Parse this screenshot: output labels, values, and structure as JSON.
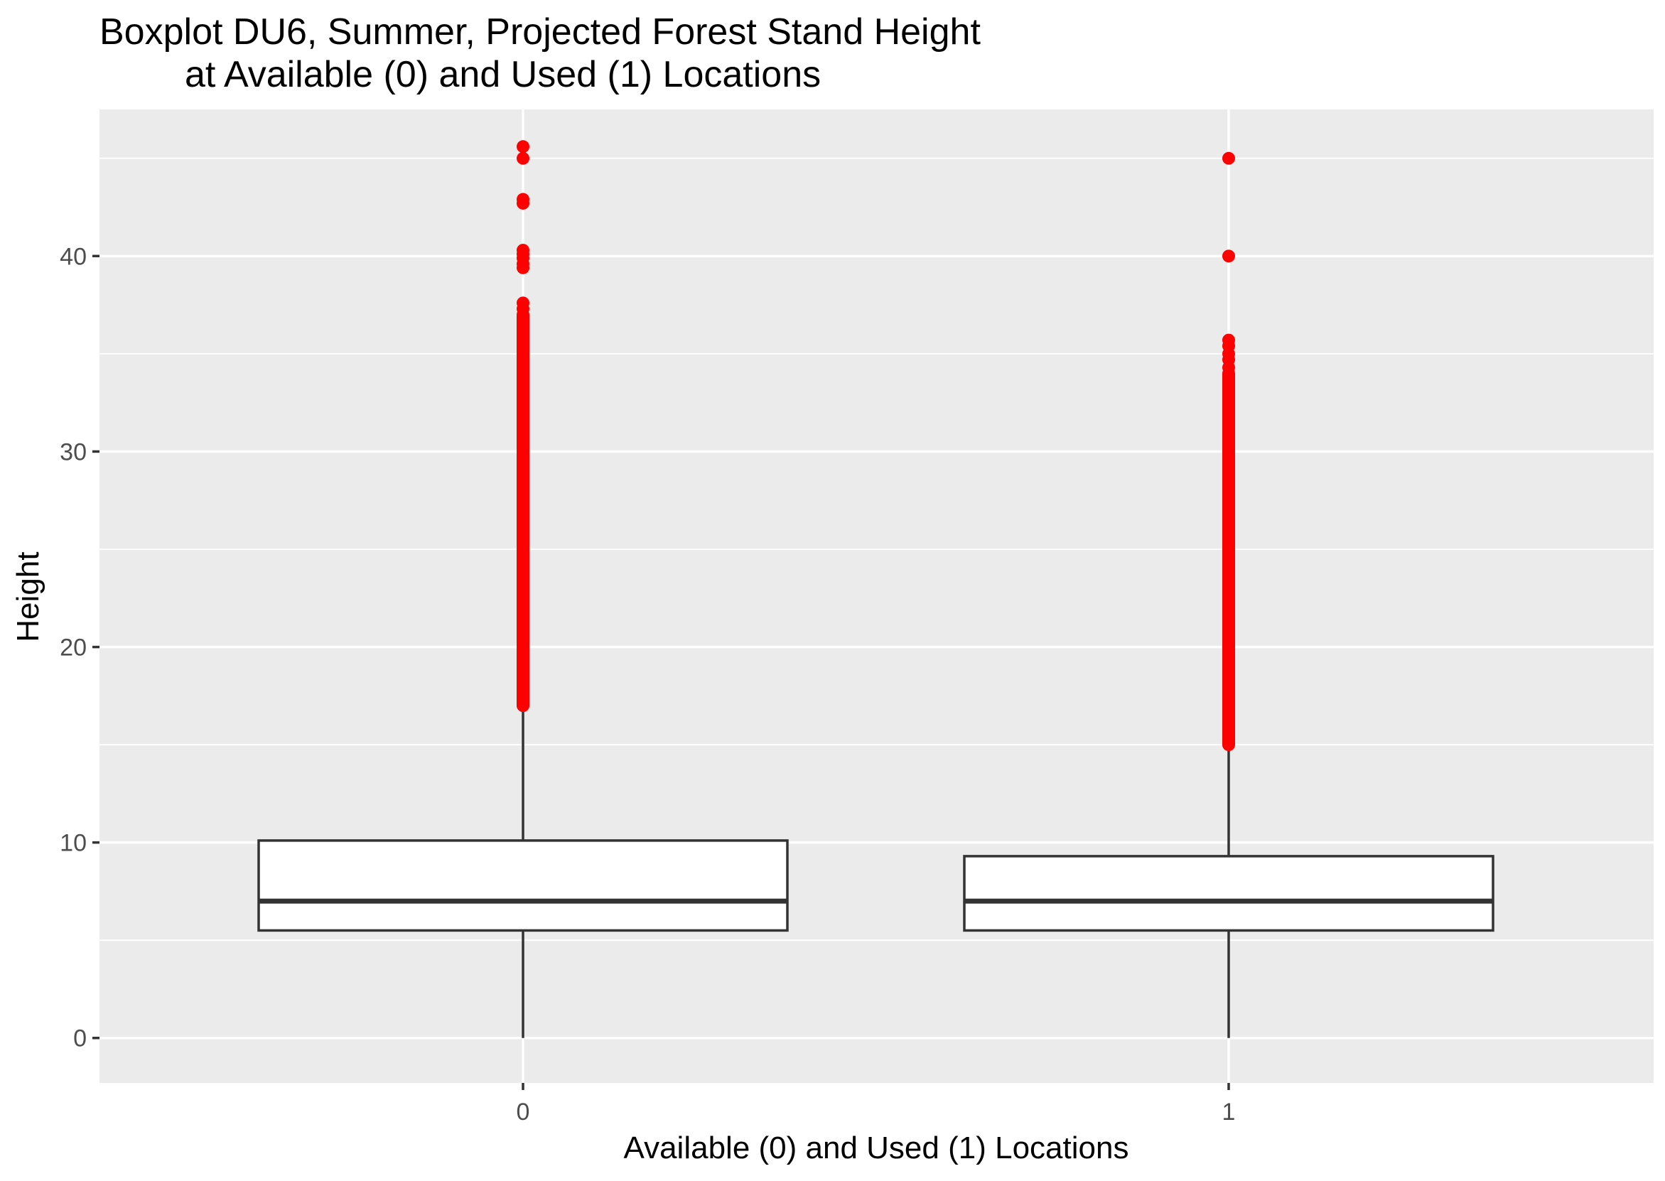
{
  "chart_data": {
    "type": "boxplot",
    "title": "Boxplot DU6, Summer, Projected Forest Stand Height",
    "subtitle": "at Available (0) and Used (1) Locations",
    "xlabel": "Available (0) and Used (1) Locations",
    "ylabel": "Height",
    "categories": [
      "0",
      "1"
    ],
    "ylim": [
      -2.3,
      47.5
    ],
    "yticks": [
      0,
      10,
      20,
      30,
      40
    ],
    "y_tick_labels": [
      "0",
      "10",
      "20",
      "30",
      "40"
    ],
    "grid": true,
    "legend": "none",
    "colors": {
      "panel_background": "#ebebeb",
      "grid": "#ffffff",
      "box_fill": "#ffffff",
      "box_line": "#333333",
      "outliers": "#ff0000"
    },
    "boxes": [
      {
        "category": "0",
        "whisker_low": 0,
        "q1": 5.5,
        "median": 7.0,
        "q3": 10.1,
        "whisker_high": 17.0,
        "outlier_range": [
          17.0,
          37.0
        ],
        "outliers_discrete": [
          37.3,
          37.6,
          39.4,
          39.6,
          39.9,
          40.1,
          40.3,
          42.7,
          42.9,
          45.0,
          45.6
        ]
      },
      {
        "category": "1",
        "whisker_low": 0,
        "q1": 5.5,
        "median": 7.0,
        "q3": 9.3,
        "whisker_high": 15.0,
        "outlier_range": [
          15.0,
          34.0
        ],
        "outliers_discrete": [
          34.3,
          34.7,
          35.0,
          35.4,
          35.7,
          40.0,
          45.0
        ]
      }
    ]
  }
}
